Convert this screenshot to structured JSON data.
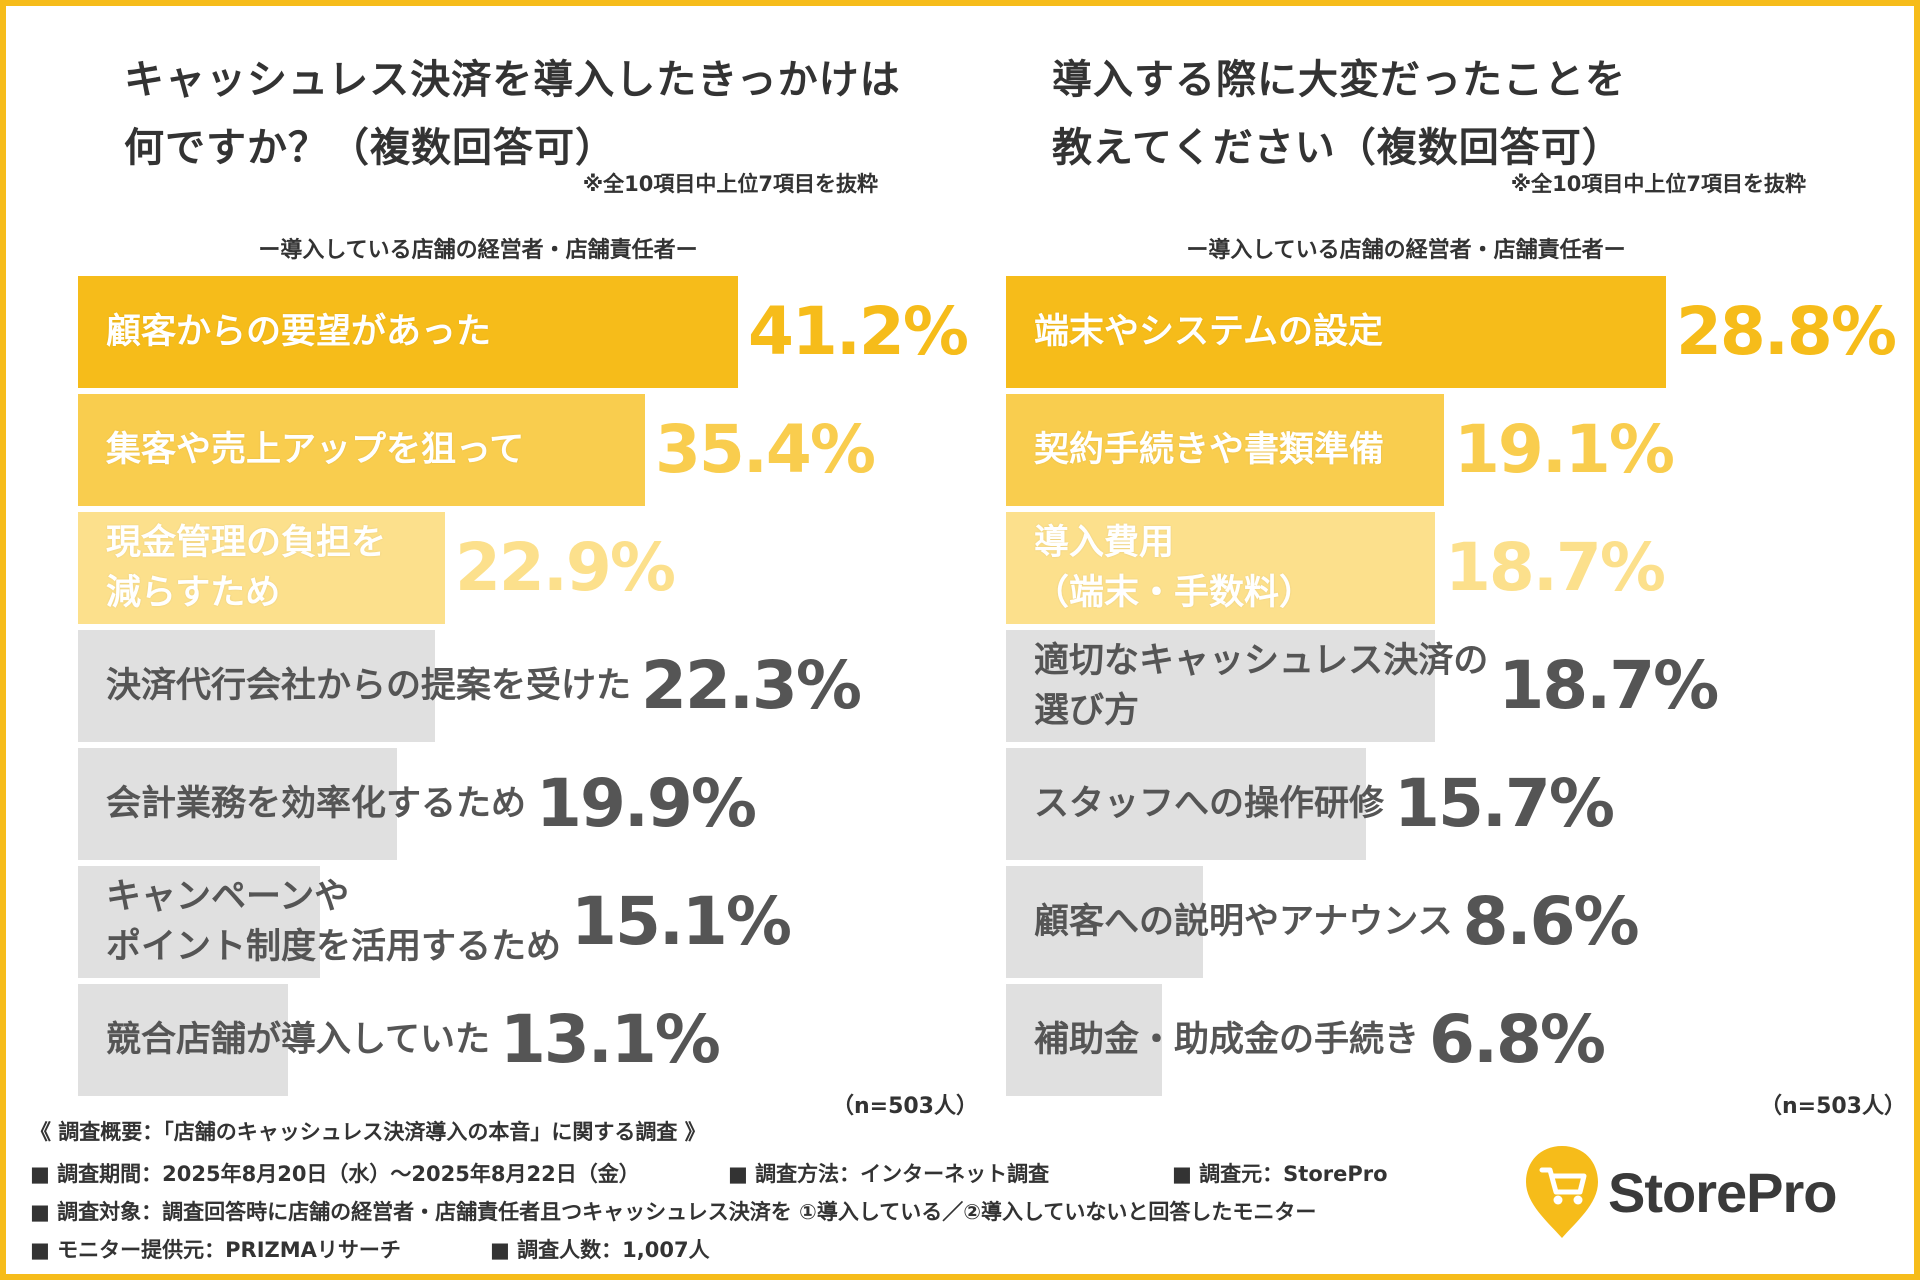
{
  "left": {
    "title_line1": "キャッシュレス決済を導入したきっかけは",
    "title_line2": "何ですか？（複数回答可）",
    "note": "※全10項目中上位7項目を抜粋",
    "subtitle": "ー導入している店舗の経営者・店舗責任者ー",
    "n": "（n=503人）"
  },
  "right": {
    "title_line1": "導入する際に大変だったことを",
    "title_line2": "教えてください（複数回答可）",
    "note": "※全10項目中上位7項目を抜粋",
    "subtitle": "ー導入している店舗の経営者・店舗責任者ー",
    "n": "（n=503人）"
  },
  "chart_data": [
    {
      "type": "bar",
      "orientation": "horizontal",
      "title": "キャッシュレス決済を導入したきっかけは何ですか？（複数回答可）",
      "categories": [
        [
          "顧客からの要望があった"
        ],
        [
          "集客や売上アップを狙って"
        ],
        [
          "現金管理の負担を",
          "減らすため"
        ],
        [
          "決済代行会社からの提案を受けた"
        ],
        [
          "会計業務を効率化するため"
        ],
        [
          "キャンペーンや",
          "ポイント制度を活用するため"
        ],
        [
          "競合店舗が導入していた"
        ]
      ],
      "values": [
        41.2,
        35.4,
        22.9,
        22.3,
        19.9,
        15.1,
        13.1
      ],
      "value_labels": [
        "41.2%",
        "35.4%",
        "22.9%",
        "22.3%",
        "19.9%",
        "15.1%",
        "13.1%"
      ],
      "unit": "%",
      "xlim": [
        0,
        41.2
      ]
    },
    {
      "type": "bar",
      "orientation": "horizontal",
      "title": "導入する際に大変だったことを教えてください（複数回答可）",
      "categories": [
        [
          "端末やシステムの設定"
        ],
        [
          "契約手続きや書類準備"
        ],
        [
          "導入費用",
          "（端末・手数料）"
        ],
        [
          "適切なキャッシュレス決済の",
          "選び方"
        ],
        [
          "スタッフへの操作研修"
        ],
        [
          "顧客への説明やアナウンス"
        ],
        [
          "補助金・助成金の手続き"
        ]
      ],
      "values": [
        28.8,
        19.1,
        18.7,
        18.7,
        15.7,
        8.6,
        6.8
      ],
      "value_labels": [
        "28.8%",
        "19.1%",
        "18.7%",
        "18.7%",
        "15.7%",
        "8.6%",
        "6.8%"
      ],
      "unit": "%",
      "xlim": [
        0,
        28.8
      ]
    }
  ],
  "colors": {
    "frame": "#f6bc1a",
    "rank1_bar": "#f6bc1a",
    "rank2_bar": "#f9cd4e",
    "rank3_bar": "#fce08c",
    "other_bar": "#e0e0e0",
    "rank1_value": "#f6bc1a",
    "rank2_value": "#f9cd4e",
    "rank3_value": "#fce08c",
    "other_value": "#555555",
    "gray_label": "#555555"
  },
  "footer": {
    "heading": "《 調査概要：「店舗のキャッシュレス決済導入の本音」に関する調査 》",
    "period": "■ 調査期間：2025年8月20日（水）〜2025年8月22日（金）",
    "method": "■ 調査方法：インターネット調査",
    "source": "■ 調査元：StorePro",
    "target": "■ 調査対象：調査回答時に店舗の経営者・店舗責任者且つキャッシュレス決済を ①導入している／②導入していないと回答したモニター",
    "provider": "■ モニター提供元：PRIZMAリサーチ",
    "sample": "■ 調査人数：1,007人"
  },
  "logo": {
    "text": "StorePro",
    "icon": "cart-pin-icon"
  }
}
